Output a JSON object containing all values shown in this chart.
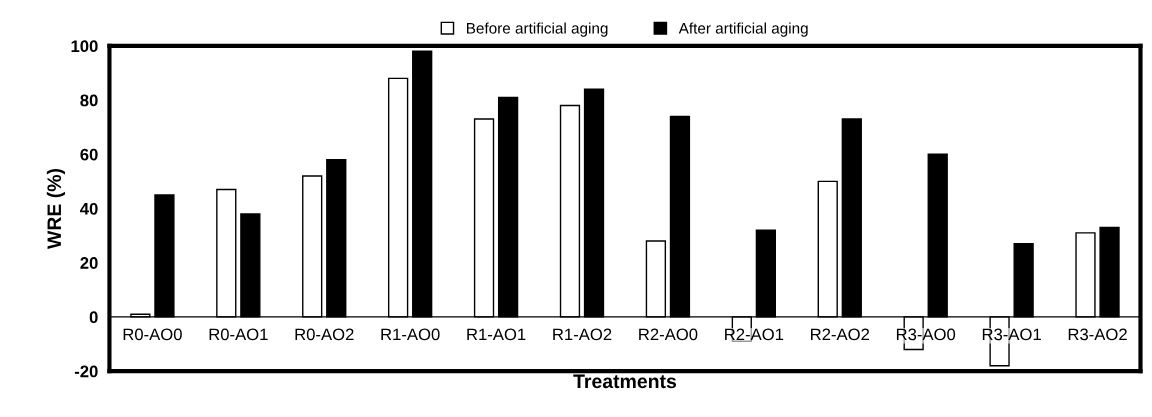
{
  "chart_data": {
    "type": "bar",
    "xlabel": "Treatments",
    "ylabel": "WRE (%)",
    "categories": [
      "R0-AO0",
      "R0-AO1",
      "R0-AO2",
      "R1-AO0",
      "R1-AO1",
      "R1-AO2",
      "R2-AO0",
      "R2-AO1",
      "R2-AO2",
      "R3-AO0",
      "R3-AO1",
      "R3-AO2"
    ],
    "series": [
      {
        "name": "Before artificial aging",
        "color": "#ffffff",
        "values": [
          1,
          47,
          52,
          88,
          73,
          78,
          28,
          -9,
          50,
          -12,
          -18,
          31
        ]
      },
      {
        "name": "After artificial aging",
        "color": "#000000",
        "values": [
          45,
          38,
          58,
          98,
          81,
          84,
          74,
          32,
          73,
          60,
          27,
          33
        ]
      }
    ],
    "ylim": [
      -20,
      100
    ],
    "yticks": [
      -20,
      0,
      20,
      40,
      60,
      80,
      100
    ],
    "grid": false,
    "legend": "top"
  }
}
